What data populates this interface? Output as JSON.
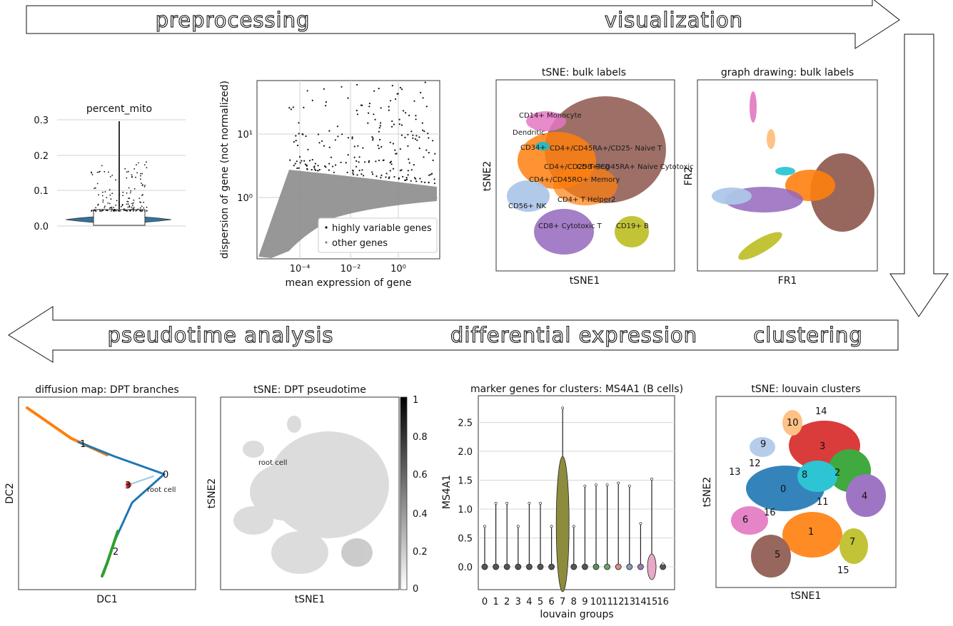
{
  "workflow": {
    "top_stages": [
      "preprocessing",
      "visualization"
    ],
    "bottom_stages": [
      "pseudotime analysis",
      "differential expression",
      "clustering"
    ]
  },
  "panels": {
    "percent_mito": {
      "title": "percent_mito",
      "yticks": [
        "0.0",
        "0.1",
        "0.2",
        "0.3"
      ],
      "color": "#3274a1"
    },
    "dispersion": {
      "xlabel": "mean expression of gene",
      "ylabel": "dispersion of gene (not normalized)",
      "xticks": [
        "10⁻⁴",
        "10⁻²",
        "10⁰"
      ],
      "yticks": [
        "10⁰",
        "10¹"
      ],
      "legend": [
        "highly variable genes",
        "other genes"
      ]
    },
    "tsne_bulk": {
      "title": "tSNE: bulk labels",
      "xlabel": "tSNE1",
      "ylabel": "tSNE2",
      "labels": [
        "CD14+ Monocyte",
        "Dendritic",
        "CD34+",
        "CD4+/CD45RA+/CD25- Naive T",
        "CD4+/CD25 T Reg",
        "CD8+/CD45RA+ Naive Cytotoxic",
        "CD4+/CD45RO+ Memory",
        "CD4+ T Helper2",
        "CD56+ NK",
        "CD19+ B",
        "CD8+ Cytotoxic T"
      ]
    },
    "graph_drawing": {
      "title": "graph drawing: bulk labels",
      "xlabel": "FR1",
      "ylabel": "FR2"
    },
    "diffusion_map": {
      "title": "diffusion map: DPT branches",
      "xlabel": "DC1",
      "ylabel": "DC2",
      "branch_labels": [
        "1",
        "0",
        "3",
        "2"
      ],
      "root_label": "root cell"
    },
    "tsne_dpt": {
      "title": "tSNE: DPT pseudotime",
      "xlabel": "tSNE1",
      "ylabel": "tSNE2",
      "root_label": "root cell",
      "colorbar_ticks": [
        "0",
        "0.2",
        "0.4",
        "0.6",
        "0.8",
        "1"
      ]
    },
    "marker_violin": {
      "title": "marker genes for clusters: MS4A1 (B cells)",
      "xlabel": "louvain groups",
      "ylabel": "MS4A1",
      "yticks": [
        "0.0",
        "0.5",
        "1.0",
        "1.5",
        "2.0",
        "2.5"
      ],
      "groups": [
        "0",
        "1",
        "2",
        "3",
        "4",
        "5",
        "6",
        "7",
        "8",
        "9",
        "10",
        "11",
        "12",
        "13",
        "14",
        "15",
        "16"
      ]
    },
    "tsne_louvain": {
      "title": "tSNE: louvain clusters",
      "xlabel": "tSNE1",
      "ylabel": "tSNE2",
      "cluster_labels": [
        "14",
        "10",
        "3",
        "9",
        "12",
        "13",
        "8",
        "2",
        "0",
        "11",
        "4",
        "16",
        "6",
        "1",
        "5",
        "7",
        "15"
      ]
    }
  },
  "chart_data": [
    {
      "type": "violin",
      "title": "percent_mito",
      "ylim": [
        0,
        0.3
      ],
      "median": 0.02,
      "max": 0.29
    },
    {
      "type": "scatter",
      "xscale": "log",
      "yscale": "log",
      "xlabel": "mean expression of gene",
      "ylabel": "dispersion of gene (not normalized)",
      "series": [
        {
          "name": "highly variable genes"
        },
        {
          "name": "other genes"
        }
      ]
    },
    {
      "type": "violin",
      "title": "marker genes for clusters: MS4A1 (B cells)",
      "xlabel": "louvain groups",
      "ylabel": "MS4A1",
      "ylim": [
        0,
        2.8
      ],
      "categories": [
        "0",
        "1",
        "2",
        "3",
        "4",
        "5",
        "6",
        "7",
        "8",
        "9",
        "10",
        "11",
        "12",
        "13",
        "14",
        "15",
        "16"
      ],
      "max_values": [
        0.7,
        1.1,
        1.1,
        0.7,
        1.1,
        1.1,
        0.7,
        2.75,
        0.7,
        1.4,
        1.42,
        1.42,
        1.45,
        1.4,
        0.75,
        1.52,
        0.05
      ]
    }
  ]
}
